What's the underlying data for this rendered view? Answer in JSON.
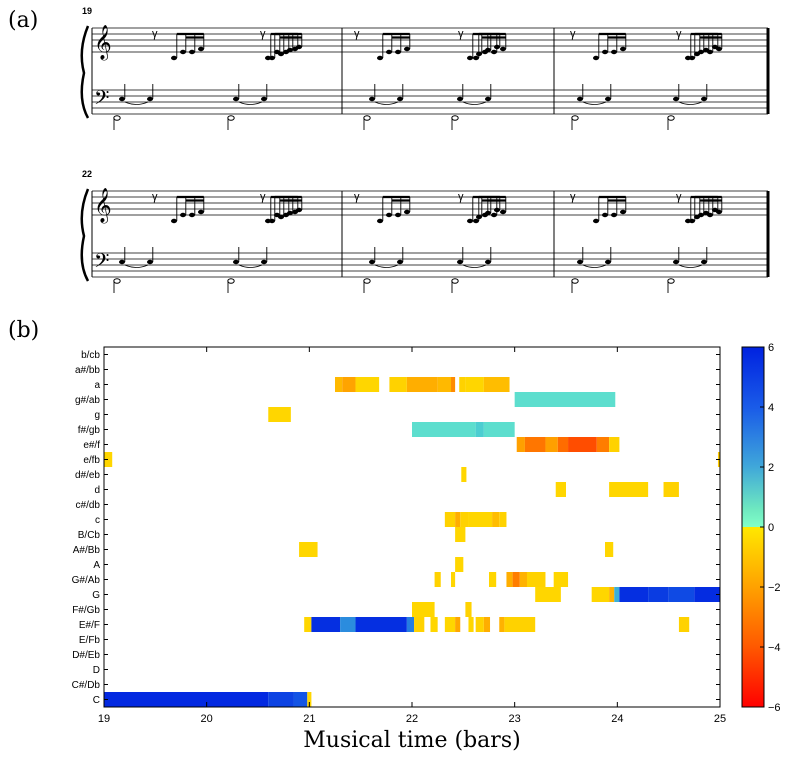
{
  "panel_labels": {
    "a": "(a)",
    "b": "(b)"
  },
  "score": {
    "systems": [
      {
        "measure_number": "19"
      },
      {
        "measure_number": "22"
      }
    ]
  },
  "chart_data": {
    "type": "heatmap",
    "xlabel": "Musical time (bars)",
    "ylabel": "",
    "xlim": [
      19,
      25
    ],
    "x_ticks": [
      "19",
      "20",
      "21",
      "22",
      "23",
      "24",
      "25"
    ],
    "y_categories": [
      "C",
      "C#/Db",
      "D",
      "D#/Eb",
      "E/Fb",
      "E#/F",
      "F#/Gb",
      "G",
      "G#/Ab",
      "A",
      "A#/Bb",
      "B/Cb",
      "c",
      "c#/db",
      "d",
      "d#/eb",
      "e/fb",
      "e#/f",
      "f#/gb",
      "g",
      "g#/ab",
      "a",
      "a#/bb",
      "b/cb"
    ],
    "colorbar": {
      "min": -6,
      "max": 6,
      "ticks": [
        "6",
        "4",
        "2",
        "0",
        "−2",
        "−4",
        "−6"
      ]
    },
    "cells": [
      {
        "row": "C",
        "x0": 19.0,
        "x1": 20.6,
        "v": 5.8
      },
      {
        "row": "C",
        "x0": 20.6,
        "x1": 20.85,
        "v": 5.0
      },
      {
        "row": "C",
        "x0": 20.85,
        "x1": 20.98,
        "v": 4.5
      },
      {
        "row": "C",
        "x0": 20.98,
        "x1": 21.02,
        "v": -0.5
      },
      {
        "row": "E#/F",
        "x0": 20.95,
        "x1": 21.02,
        "v": -0.5
      },
      {
        "row": "E#/F",
        "x0": 21.02,
        "x1": 21.3,
        "v": 5.6
      },
      {
        "row": "E#/F",
        "x0": 21.3,
        "x1": 21.45,
        "v": 3.2
      },
      {
        "row": "E#/F",
        "x0": 21.45,
        "x1": 21.95,
        "v": 5.6
      },
      {
        "row": "E#/F",
        "x0": 21.95,
        "x1": 22.02,
        "v": 3.5
      },
      {
        "row": "E#/F",
        "x0": 22.02,
        "x1": 22.12,
        "v": -0.6
      },
      {
        "row": "E#/F",
        "x0": 22.18,
        "x1": 22.25,
        "v": -0.5
      },
      {
        "row": "E#/F",
        "x0": 22.32,
        "x1": 22.42,
        "v": -0.5
      },
      {
        "row": "E#/F",
        "x0": 22.42,
        "x1": 22.47,
        "v": -1.8
      },
      {
        "row": "E#/F",
        "x0": 22.55,
        "x1": 22.6,
        "v": -0.5
      },
      {
        "row": "E#/F",
        "x0": 22.62,
        "x1": 22.7,
        "v": -0.6
      },
      {
        "row": "E#/F",
        "x0": 22.7,
        "x1": 22.76,
        "v": -1.6
      },
      {
        "row": "E#/F",
        "x0": 22.85,
        "x1": 22.9,
        "v": -1.5
      },
      {
        "row": "E#/F",
        "x0": 22.9,
        "x1": 23.2,
        "v": -0.6
      },
      {
        "row": "E#/F",
        "x0": 24.6,
        "x1": 24.7,
        "v": -0.6
      },
      {
        "row": "F#/Gb",
        "x0": 22.0,
        "x1": 22.22,
        "v": -0.5
      },
      {
        "row": "F#/Gb",
        "x0": 22.52,
        "x1": 22.58,
        "v": -0.6
      },
      {
        "row": "G",
        "x0": 23.2,
        "x1": 23.45,
        "v": -0.5
      },
      {
        "row": "G",
        "x0": 23.75,
        "x1": 23.92,
        "v": -0.5
      },
      {
        "row": "G",
        "x0": 23.92,
        "x1": 23.97,
        "v": -1.5
      },
      {
        "row": "G",
        "x0": 23.97,
        "x1": 24.02,
        "v": 2.5
      },
      {
        "row": "G",
        "x0": 24.02,
        "x1": 24.3,
        "v": 5.6
      },
      {
        "row": "G",
        "x0": 24.3,
        "x1": 24.5,
        "v": 5.2
      },
      {
        "row": "G",
        "x0": 24.5,
        "x1": 24.75,
        "v": 4.8
      },
      {
        "row": "G",
        "x0": 24.75,
        "x1": 25.0,
        "v": 5.7
      },
      {
        "row": "G#/Ab",
        "x0": 22.22,
        "x1": 22.28,
        "v": -0.6
      },
      {
        "row": "G#/Ab",
        "x0": 22.38,
        "x1": 22.42,
        "v": -0.5
      },
      {
        "row": "G#/Ab",
        "x0": 22.75,
        "x1": 22.82,
        "v": -0.5
      },
      {
        "row": "G#/Ab",
        "x0": 22.92,
        "x1": 22.98,
        "v": -1.6
      },
      {
        "row": "G#/Ab",
        "x0": 22.98,
        "x1": 23.05,
        "v": -3.0
      },
      {
        "row": "G#/Ab",
        "x0": 23.05,
        "x1": 23.12,
        "v": -1.5
      },
      {
        "row": "G#/Ab",
        "x0": 23.12,
        "x1": 23.3,
        "v": -0.6
      },
      {
        "row": "G#/Ab",
        "x0": 23.38,
        "x1": 23.52,
        "v": -0.5
      },
      {
        "row": "A",
        "x0": 22.42,
        "x1": 22.5,
        "v": -0.5
      },
      {
        "row": "A#/Bb",
        "x0": 20.9,
        "x1": 21.08,
        "v": -0.5
      },
      {
        "row": "A#/Bb",
        "x0": 23.88,
        "x1": 23.96,
        "v": -0.5
      },
      {
        "row": "B/Cb",
        "x0": 22.42,
        "x1": 22.52,
        "v": -0.5
      },
      {
        "row": "c",
        "x0": 22.32,
        "x1": 22.42,
        "v": -0.6
      },
      {
        "row": "c",
        "x0": 22.42,
        "x1": 22.47,
        "v": -1.6
      },
      {
        "row": "c",
        "x0": 22.47,
        "x1": 22.55,
        "v": -0.6
      },
      {
        "row": "c",
        "x0": 22.55,
        "x1": 22.78,
        "v": -0.5
      },
      {
        "row": "c",
        "x0": 22.78,
        "x1": 22.85,
        "v": -1.2
      },
      {
        "row": "c",
        "x0": 22.85,
        "x1": 22.92,
        "v": -0.6
      },
      {
        "row": "d",
        "x0": 23.4,
        "x1": 23.5,
        "v": -0.5
      },
      {
        "row": "d",
        "x0": 23.92,
        "x1": 24.3,
        "v": -0.5
      },
      {
        "row": "d",
        "x0": 24.45,
        "x1": 24.6,
        "v": -0.6
      },
      {
        "row": "d#/eb",
        "x0": 22.48,
        "x1": 22.53,
        "v": -0.5
      },
      {
        "row": "e/fb",
        "x0": 19.0,
        "x1": 19.08,
        "v": -0.5
      },
      {
        "row": "e/fb",
        "x0": 24.98,
        "x1": 25.0,
        "v": -0.8
      },
      {
        "row": "e#/f",
        "x0": 23.02,
        "x1": 23.1,
        "v": -2.0
      },
      {
        "row": "e#/f",
        "x0": 23.1,
        "x1": 23.3,
        "v": -3.2
      },
      {
        "row": "e#/f",
        "x0": 23.3,
        "x1": 23.42,
        "v": -2.0
      },
      {
        "row": "e#/f",
        "x0": 23.42,
        "x1": 23.52,
        "v": -3.5
      },
      {
        "row": "e#/f",
        "x0": 23.52,
        "x1": 23.8,
        "v": -4.3
      },
      {
        "row": "e#/f",
        "x0": 23.8,
        "x1": 23.92,
        "v": -3.0
      },
      {
        "row": "e#/f",
        "x0": 23.92,
        "x1": 24.02,
        "v": -0.6
      },
      {
        "row": "f#/gb",
        "x0": 22.0,
        "x1": 22.62,
        "v": 1.2
      },
      {
        "row": "f#/gb",
        "x0": 22.62,
        "x1": 22.7,
        "v": 1.8
      },
      {
        "row": "f#/gb",
        "x0": 22.7,
        "x1": 23.0,
        "v": 1.2
      },
      {
        "row": "g",
        "x0": 20.6,
        "x1": 20.82,
        "v": -0.5
      },
      {
        "row": "g#/ab",
        "x0": 23.0,
        "x1": 23.98,
        "v": 1.2
      },
      {
        "row": "a",
        "x0": 21.25,
        "x1": 21.32,
        "v": -1.3
      },
      {
        "row": "a",
        "x0": 21.32,
        "x1": 21.45,
        "v": -1.9
      },
      {
        "row": "a",
        "x0": 21.45,
        "x1": 21.68,
        "v": -0.5
      },
      {
        "row": "a",
        "x0": 21.78,
        "x1": 21.95,
        "v": -0.6
      },
      {
        "row": "a",
        "x0": 21.95,
        "x1": 22.25,
        "v": -1.6
      },
      {
        "row": "a",
        "x0": 22.25,
        "x1": 22.38,
        "v": -1.3
      },
      {
        "row": "a",
        "x0": 22.38,
        "x1": 22.42,
        "v": -2.6
      },
      {
        "row": "a",
        "x0": 22.46,
        "x1": 22.52,
        "v": -0.6
      },
      {
        "row": "a",
        "x0": 22.52,
        "x1": 22.7,
        "v": -0.5
      },
      {
        "row": "a",
        "x0": 22.7,
        "x1": 22.95,
        "v": -1.2
      }
    ]
  }
}
